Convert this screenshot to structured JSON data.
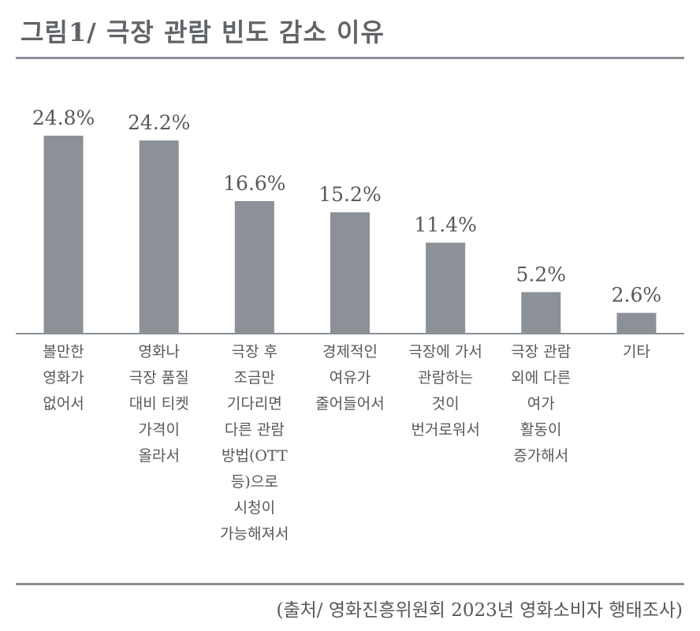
{
  "chart_data": {
    "type": "bar",
    "title": "그림1/ 극장 관람 빈도 감소 이유",
    "categories": [
      [
        "볼만한",
        "영화가",
        "없어서"
      ],
      [
        "영화나",
        "극장 품질",
        "대비 티켓",
        "가격이",
        "올라서"
      ],
      [
        "극장 후",
        "조금만",
        "기다리면",
        "다른 관람",
        "방법(OTT",
        "등)으로",
        "시청이",
        "가능해져서"
      ],
      [
        "경제적인",
        "여유가",
        "줄어들어서"
      ],
      [
        "극장에 가서",
        "관람하는",
        "것이",
        "번거로워서"
      ],
      [
        "극장 관람",
        "외에 다른",
        "여가",
        "활동이",
        "증가해서"
      ],
      [
        "기타"
      ]
    ],
    "values": [
      24.8,
      24.2,
      16.6,
      15.2,
      11.4,
      5.2,
      2.6
    ],
    "value_labels": [
      "24.8%",
      "24.2%",
      "16.6%",
      "15.2%",
      "11.4%",
      "5.2%",
      "2.6%"
    ],
    "unit": "%",
    "ylim": [
      0,
      25
    ],
    "grid": false,
    "legend": "none",
    "bar_color": "#8c9197",
    "source": "(출처/ 영화진흥위원회 2023년 영화소비자 행태조사)"
  }
}
